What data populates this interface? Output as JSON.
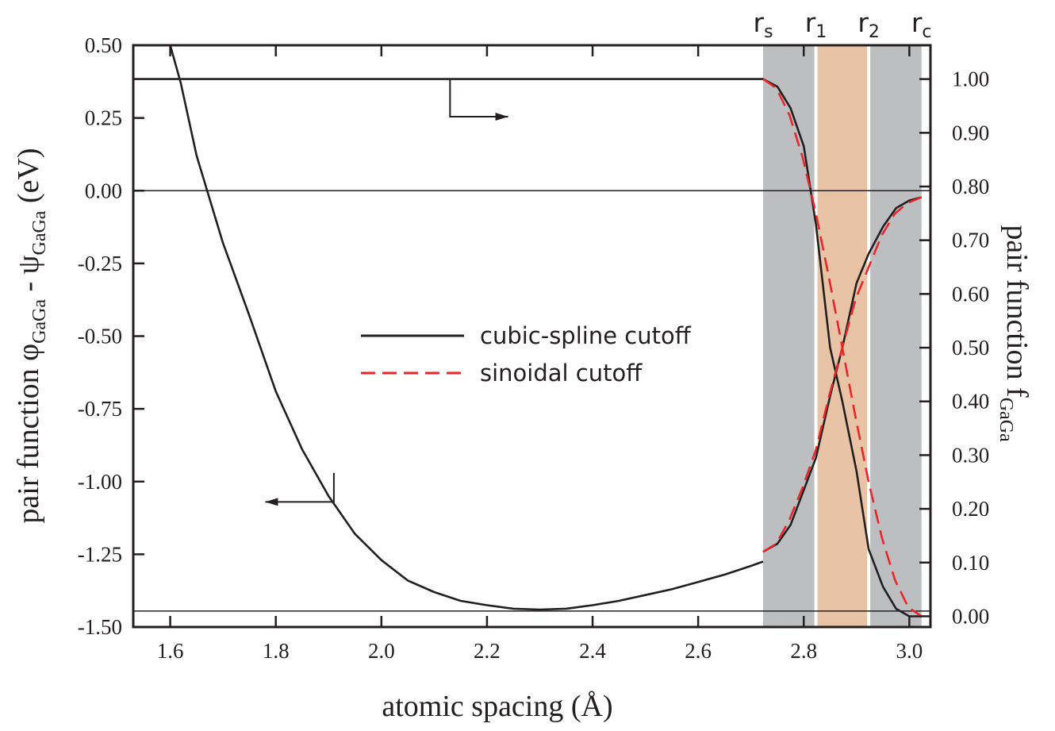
{
  "chart_data": {
    "type": "line",
    "xlabel": "atomic spacing (Å)",
    "ylabel_left": {
      "main": "pair function φ",
      "sub1": "GaGa",
      "mid": " - ψ",
      "sub2": "GaGa",
      "end": " (eV)"
    },
    "ylabel_right": {
      "main": "pair function f",
      "sub": "GaGa"
    },
    "xlim": [
      1.53,
      3.04
    ],
    "ylim_left": [
      -1.5,
      0.5
    ],
    "ylim_right": [
      -0.02,
      1.063
    ],
    "x_ticks": [
      "1.6",
      "1.8",
      "2.0",
      "2.2",
      "2.4",
      "2.6",
      "2.8",
      "3.0"
    ],
    "y_left_ticks": [
      "0.50",
      "0.25",
      "0.00",
      "-0.25",
      "-0.50",
      "-0.75",
      "-1.00",
      "-1.25",
      "-1.50"
    ],
    "y_right_ticks": [
      "1.00",
      "0.90",
      "0.80",
      "0.70",
      "0.60",
      "0.50",
      "0.40",
      "0.30",
      "0.20",
      "0.10",
      "0.00"
    ],
    "regions": [
      {
        "label": "r",
        "sub": "s",
        "x": 2.723
      },
      {
        "label": "r",
        "sub": "1",
        "x": 2.823
      },
      {
        "label": "r",
        "sub": "2",
        "x": 2.923
      },
      {
        "label": "r",
        "sub": "c",
        "x": 3.023
      }
    ],
    "colors": {
      "gray_band": "#bdbec0",
      "tan_band": "#e8c3a5",
      "solid": "#231f20",
      "dashed": "#e8262c"
    },
    "legend": [
      {
        "label": "cubic-spline cutoff",
        "style": "solid"
      },
      {
        "label": "sinoidal cutoff",
        "style": "dashed"
      }
    ],
    "series": [
      {
        "axis": "left",
        "style": "solid",
        "x": [
          1.6,
          1.62,
          1.65,
          1.68,
          1.7,
          1.72,
          1.75,
          1.8,
          1.85,
          1.9,
          1.95,
          2.0,
          2.05,
          2.1,
          2.15,
          2.2,
          2.25,
          2.3,
          2.35,
          2.4,
          2.45,
          2.5,
          2.55,
          2.6,
          2.65,
          2.7,
          2.723
        ],
        "y": [
          0.5,
          0.37,
          0.12,
          -0.06,
          -0.18,
          -0.28,
          -0.43,
          -0.69,
          -0.89,
          -1.05,
          -1.18,
          -1.27,
          -1.34,
          -1.38,
          -1.41,
          -1.425,
          -1.437,
          -1.44,
          -1.437,
          -1.425,
          -1.41,
          -1.39,
          -1.37,
          -1.345,
          -1.32,
          -1.29,
          -1.275
        ]
      },
      {
        "axis": "right",
        "style": "solid",
        "x": [
          1.53,
          2.723,
          2.75,
          2.775,
          2.8,
          2.823,
          2.85,
          2.873,
          2.9,
          2.923,
          2.95,
          2.975,
          3.0,
          3.023
        ],
        "y": [
          1.0,
          1.0,
          0.986,
          0.946,
          0.875,
          0.73,
          0.5,
          0.4,
          0.27,
          0.125,
          0.055,
          0.014,
          0.0,
          0.0
        ]
      },
      {
        "axis": "right",
        "style": "solid",
        "x": [
          2.723,
          2.75,
          2.775,
          2.8,
          2.823,
          2.85,
          2.873,
          2.9,
          2.923,
          2.95,
          2.975,
          3.0,
          3.023
        ],
        "y": [
          0.12,
          0.135,
          0.17,
          0.235,
          0.295,
          0.41,
          0.5,
          0.62,
          0.675,
          0.725,
          0.76,
          0.774,
          0.78
        ]
      },
      {
        "axis": "right",
        "style": "dashed",
        "x": [
          2.723,
          2.748,
          2.773,
          2.798,
          2.823,
          2.848,
          2.873,
          2.898,
          2.923,
          2.948,
          2.973,
          2.998,
          3.023
        ],
        "y": [
          1.0,
          0.983,
          0.933,
          0.854,
          0.75,
          0.629,
          0.5,
          0.371,
          0.25,
          0.146,
          0.067,
          0.017,
          0.0
        ]
      },
      {
        "axis": "right",
        "style": "dashed",
        "x": [
          2.723,
          2.748,
          2.773,
          2.798,
          2.823,
          2.848,
          2.873,
          2.898,
          2.923,
          2.948,
          2.973,
          2.998,
          3.023
        ],
        "y": [
          0.12,
          0.135,
          0.18,
          0.24,
          0.31,
          0.41,
          0.5,
          0.59,
          0.65,
          0.71,
          0.75,
          0.77,
          0.78
        ]
      }
    ],
    "reference_lines": [
      {
        "axis": "left",
        "y": 0.0
      },
      {
        "axis": "left",
        "y": -1.445
      }
    ],
    "arrows": [
      {
        "axis": "right",
        "x_from": 2.13,
        "y_from": 1.0,
        "y_to": 0.93,
        "x_to": 2.24
      },
      {
        "axis": "left",
        "x_from": 1.91,
        "y_from": -0.97,
        "y_to": -1.07,
        "x_to": 1.78
      }
    ]
  }
}
